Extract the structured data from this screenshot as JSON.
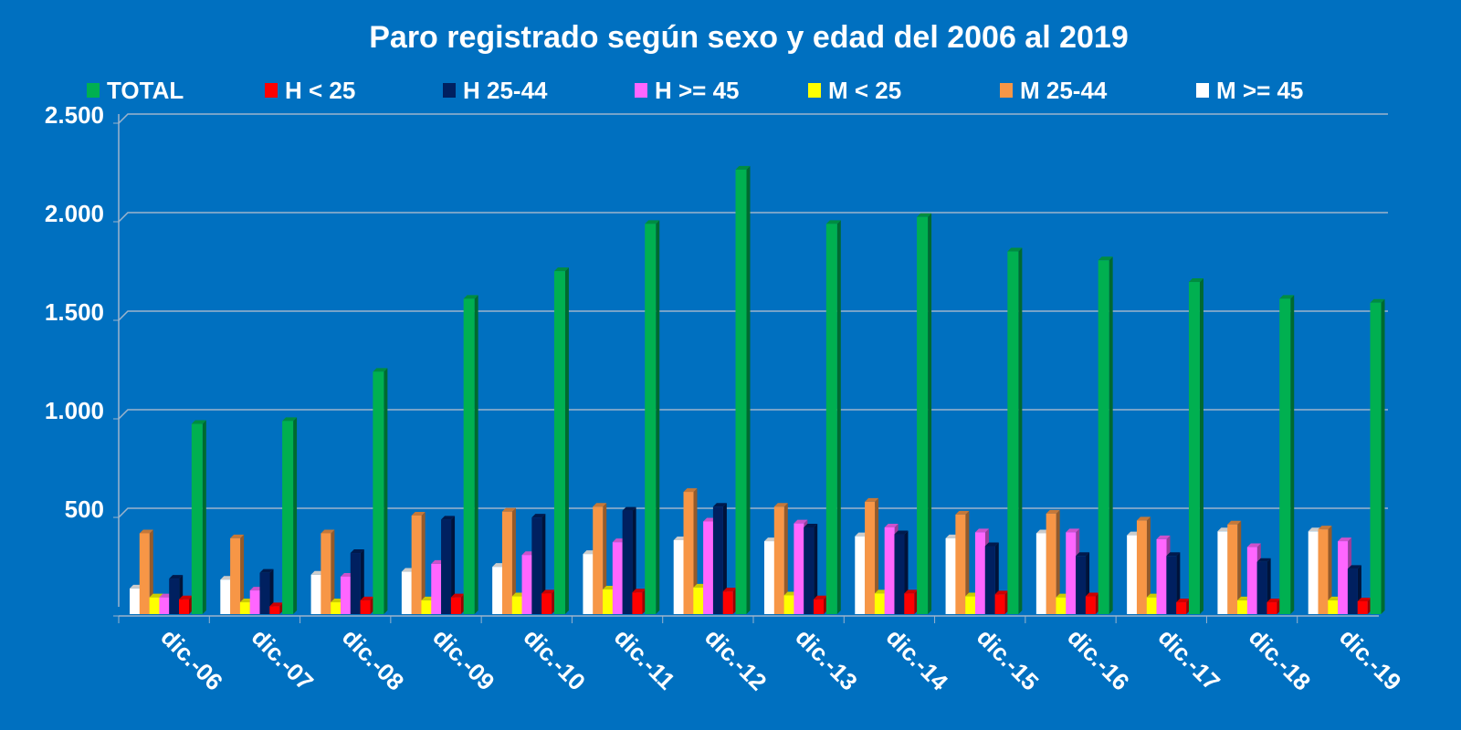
{
  "chart_data": {
    "type": "bar",
    "title": "Paro registrado según sexo y edad del 2006 al 2019",
    "xlabel": "",
    "ylabel": "",
    "ylim": [
      0,
      2500
    ],
    "yticks": [
      0,
      500,
      1000,
      1500,
      2000,
      2500
    ],
    "ytick_labels": [
      "",
      "500",
      "1.000",
      "1.500",
      "2.000",
      "2.500"
    ],
    "grid": true,
    "legend_position": "top",
    "categories": [
      "dic.-06",
      "dic.-07",
      "dic.-08",
      "dic.-09",
      "dic.-10",
      "dic.-11",
      "dic.-12",
      "dic.-13",
      "dic.-14",
      "dic.-15",
      "dic.-16",
      "dic.-17",
      "dic.-18",
      "dic.-19"
    ],
    "legend": [
      {
        "name": "TOTAL",
        "color": "#00b050"
      },
      {
        "name": "H < 25",
        "color": "#ff0000"
      },
      {
        "name": "H 25-44",
        "color": "#002060"
      },
      {
        "name": "H >= 45",
        "color": "#ff66ff"
      },
      {
        "name": "M < 25",
        "color": "#ffff00"
      },
      {
        "name": "M 25-44",
        "color": "#f79646"
      },
      {
        "name": "M >= 45",
        "color": "#ffffff"
      }
    ],
    "series": [
      {
        "name": "M >= 45",
        "color": "#ffffff",
        "values": [
          130,
          175,
          200,
          215,
          240,
          305,
          375,
          370,
          395,
          385,
          410,
          400,
          420,
          420
        ]
      },
      {
        "name": "M 25-44",
        "color": "#f79646",
        "values": [
          410,
          385,
          410,
          500,
          520,
          545,
          620,
          545,
          570,
          505,
          510,
          475,
          455,
          430
        ]
      },
      {
        "name": "M < 25",
        "color": "#ffff00",
        "values": [
          85,
          60,
          60,
          70,
          90,
          125,
          135,
          95,
          105,
          90,
          85,
          85,
          70,
          70
        ]
      },
      {
        "name": "H >= 45",
        "color": "#ff66ff",
        "values": [
          85,
          120,
          190,
          255,
          300,
          365,
          470,
          460,
          440,
          415,
          415,
          380,
          340,
          370
        ]
      },
      {
        "name": "H 25-44",
        "color": "#002060",
        "values": [
          180,
          210,
          310,
          480,
          490,
          525,
          545,
          440,
          405,
          345,
          295,
          295,
          265,
          230
        ]
      },
      {
        "name": "H < 25",
        "color": "#ff0000",
        "values": [
          75,
          40,
          70,
          85,
          105,
          110,
          115,
          75,
          105,
          100,
          90,
          60,
          60,
          65
        ]
      },
      {
        "name": "TOTAL",
        "color": "#00b050",
        "values": [
          965,
          980,
          1230,
          1600,
          1740,
          1980,
          2255,
          1980,
          2015,
          1840,
          1795,
          1685,
          1600,
          1580
        ]
      }
    ]
  }
}
